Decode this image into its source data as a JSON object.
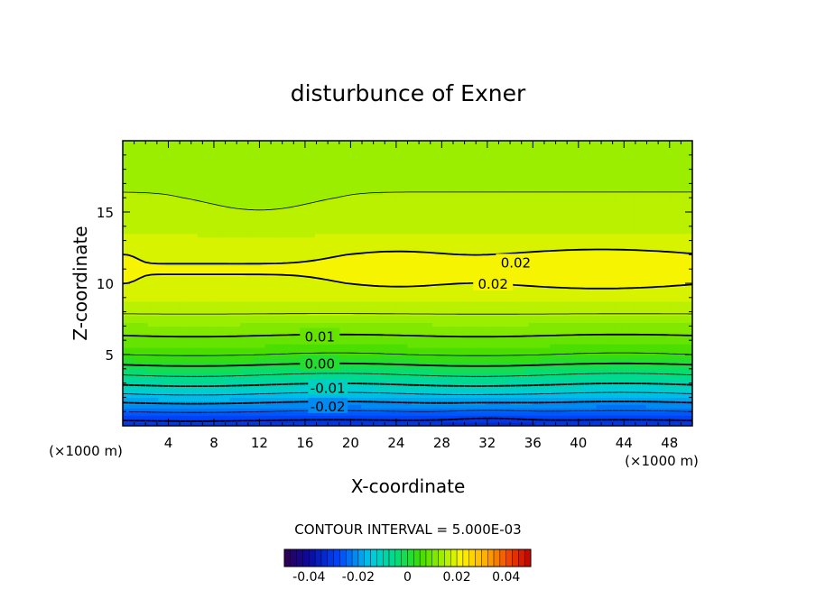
{
  "chart_data": {
    "type": "heatmap",
    "title": "disturbunce of Exner",
    "xlabel": "X-coordinate",
    "ylabel": "Z-coordinate",
    "x_unit_left": "(×1000 m)",
    "x_unit_right": "(×1000 m)",
    "xlim": [
      0,
      50
    ],
    "ylim": [
      0,
      20
    ],
    "x_ticks": [
      {
        "value": 4,
        "label": "4"
      },
      {
        "value": 8,
        "label": "8"
      },
      {
        "value": 12,
        "label": "12"
      },
      {
        "value": 16,
        "label": "16"
      },
      {
        "value": 20,
        "label": "20"
      },
      {
        "value": 24,
        "label": "24"
      },
      {
        "value": 28,
        "label": "28"
      },
      {
        "value": 32,
        "label": "32"
      },
      {
        "value": 36,
        "label": "36"
      },
      {
        "value": 40,
        "label": "40"
      },
      {
        "value": 44,
        "label": "44"
      },
      {
        "value": 48,
        "label": "48"
      }
    ],
    "y_ticks": [
      {
        "value": 5,
        "label": "5"
      },
      {
        "value": 10,
        "label": "10"
      },
      {
        "value": 15,
        "label": "15"
      }
    ],
    "contour_interval_text": "CONTOUR INTERVAL = 5.000E-03",
    "contour_interval": 0.005,
    "contour_labels": [
      {
        "text": "0.02",
        "x": 34.5,
        "z": 11.5
      },
      {
        "text": "0.02",
        "x": 32.5,
        "z": 10.0
      },
      {
        "text": "0.01",
        "x": 17.3,
        "z": 6.3
      },
      {
        "text": "0.00",
        "x": 17.3,
        "z": 4.4
      },
      {
        "text": "-0.01",
        "x": 18.0,
        "z": 2.7
      },
      {
        "text": "-0.02",
        "x": 18.0,
        "z": 1.4
      }
    ],
    "field_profile": [
      {
        "z": 0.0,
        "value": -0.033
      },
      {
        "z": 1.0,
        "value": -0.025
      },
      {
        "z": 2.0,
        "value": -0.017
      },
      {
        "z": 3.0,
        "value": -0.009
      },
      {
        "z": 4.0,
        "value": -0.002
      },
      {
        "z": 5.0,
        "value": 0.005
      },
      {
        "z": 6.0,
        "value": 0.009
      },
      {
        "z": 7.0,
        "value": 0.012
      },
      {
        "z": 8.0,
        "value": 0.0155
      },
      {
        "z": 9.0,
        "value": 0.018
      },
      {
        "z": 10.0,
        "value": 0.0195
      },
      {
        "z": 11.0,
        "value": 0.0203
      },
      {
        "z": 12.0,
        "value": 0.0195
      },
      {
        "z": 13.0,
        "value": 0.018
      },
      {
        "z": 14.0,
        "value": 0.0168
      },
      {
        "z": 16.0,
        "value": 0.0152
      },
      {
        "z": 18.0,
        "value": 0.0142
      },
      {
        "z": 20.0,
        "value": 0.0138
      }
    ],
    "colorbar": {
      "min": -0.05,
      "max": 0.05,
      "tick_labels": [
        {
          "value": -0.04,
          "label": "-0.04"
        },
        {
          "value": -0.02,
          "label": "-0.02"
        },
        {
          "value": 0.0,
          "label": "0"
        },
        {
          "value": 0.02,
          "label": "0.02"
        },
        {
          "value": 0.04,
          "label": "0.04"
        }
      ]
    }
  }
}
